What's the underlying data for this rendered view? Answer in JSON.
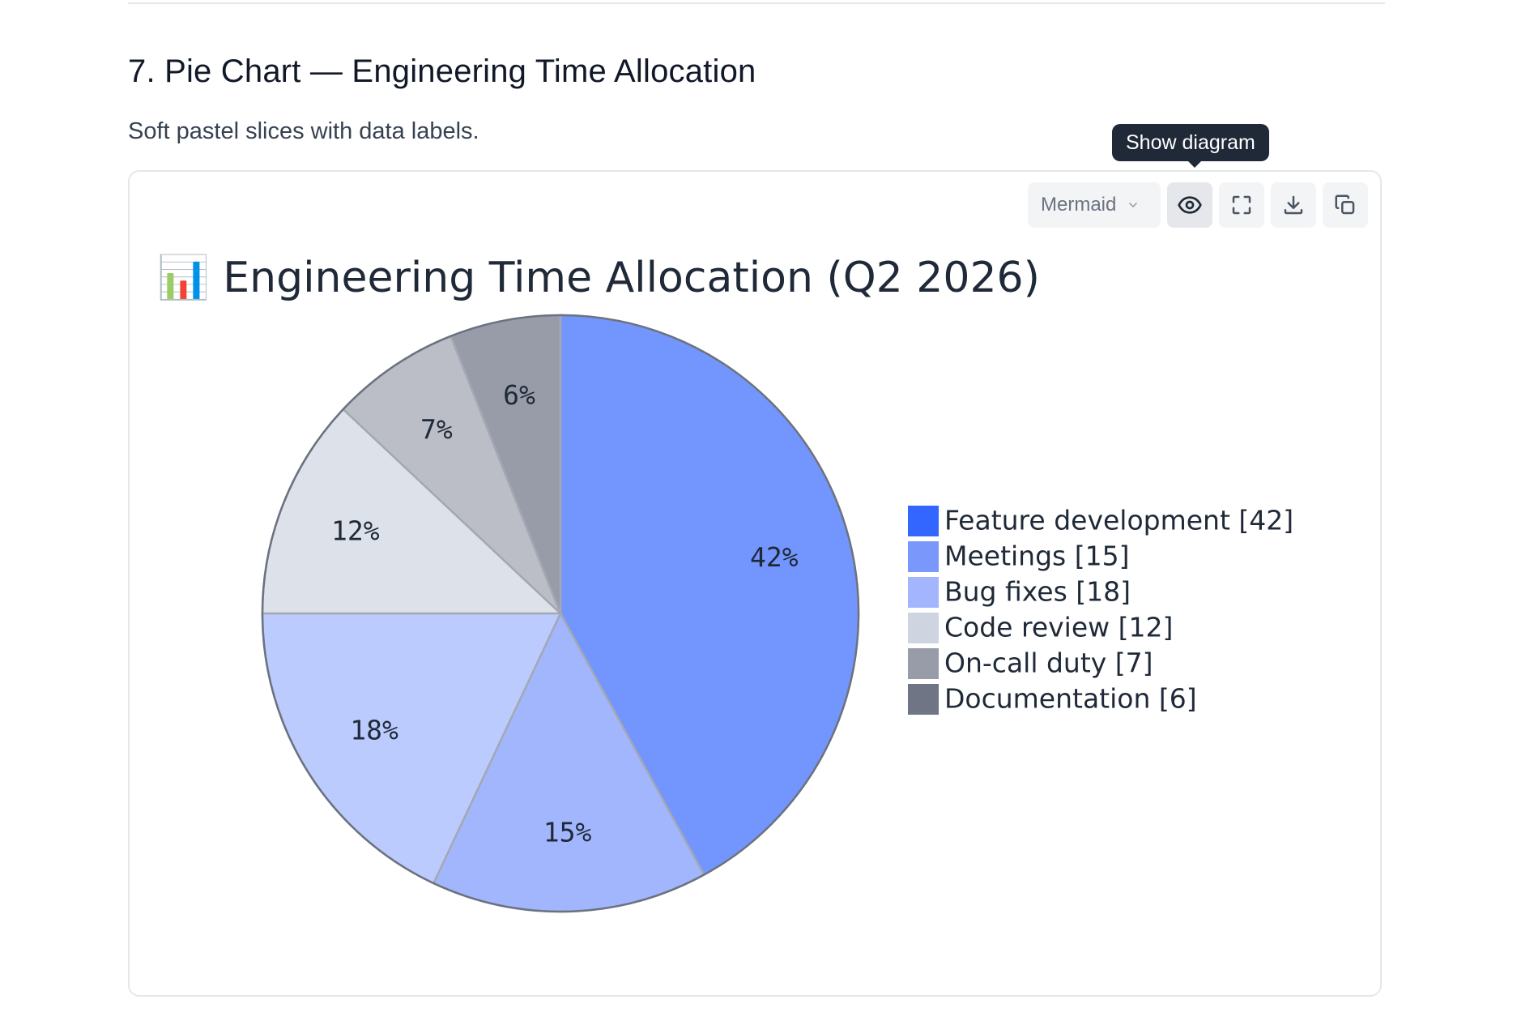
{
  "section": {
    "title": "7. Pie Chart — Engineering Time Allocation",
    "description": "Soft pastel slices with data labels."
  },
  "toolbar": {
    "mode_label": "Mermaid",
    "show_diagram_tooltip": "Show diagram",
    "buttons": [
      "eye-icon",
      "fullscreen-icon",
      "download-icon",
      "copy-icon"
    ]
  },
  "chart_data": {
    "type": "pie",
    "title": "📊 Engineering Time Allocation (Q2 2026)",
    "slices": [
      {
        "label": "Feature development",
        "value": 42,
        "percent_label": "42%",
        "color": "#7295fe"
      },
      {
        "label": "Meetings",
        "value": 15,
        "percent_label": "15%",
        "color": "#a2b6fe"
      },
      {
        "label": "Bug fixes",
        "value": 18,
        "percent_label": "18%",
        "color": "#bccbfe"
      },
      {
        "label": "Code review",
        "value": 12,
        "percent_label": "12%",
        "color": "#dde2ea"
      },
      {
        "label": "On-call duty",
        "value": 7,
        "percent_label": "7%",
        "color": "#bbbec7"
      },
      {
        "label": "Documentation",
        "value": 6,
        "percent_label": "6%",
        "color": "#979ca8"
      }
    ],
    "legend": [
      {
        "text": "Feature development [42]",
        "color": "#3366ff"
      },
      {
        "text": "Meetings [15]",
        "color": "#7a97fb"
      },
      {
        "text": "Bug fixes [18]",
        "color": "#a3b6fd"
      },
      {
        "text": "Code review [12]",
        "color": "#cfd5e0"
      },
      {
        "text": "On-call duty [7]",
        "color": "#979ca8"
      },
      {
        "text": "Documentation [6]",
        "color": "#6f7584"
      }
    ],
    "legend_position": "right",
    "start_angle": "top, clockwise"
  }
}
